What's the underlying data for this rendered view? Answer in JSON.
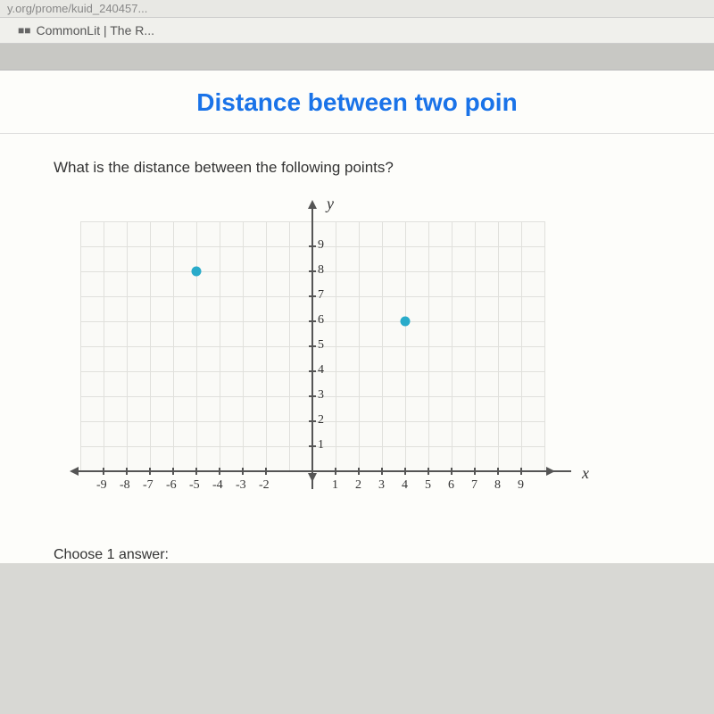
{
  "url_fragment": "y.org/prome/kuid_240457...",
  "bookmark": {
    "icon": "■■",
    "label": "CommonLit | The R..."
  },
  "page": {
    "title": "Distance between two poin",
    "question": "What is the distance between the following points?",
    "choose": "Choose 1 answer:"
  },
  "graph": {
    "y_label": "y",
    "x_label": "x",
    "x_min": -9,
    "x_max": 9,
    "y_min": 0,
    "y_max": 9,
    "x_ticks_neg": [
      -9,
      -8,
      -7,
      -6,
      -5,
      -4,
      -3,
      -2
    ],
    "x_ticks_pos": [
      1,
      2,
      3,
      4,
      5,
      6,
      7,
      8,
      9
    ],
    "y_ticks": [
      1,
      2,
      3,
      4,
      5,
      6,
      7,
      8,
      9
    ],
    "points": [
      {
        "x": -5,
        "y": 8
      },
      {
        "x": 4,
        "y": 6
      }
    ],
    "point_color": "#29abca",
    "grid_color": "#e0e0dc",
    "axis_color": "#555555",
    "bg": "#fafaf7"
  }
}
